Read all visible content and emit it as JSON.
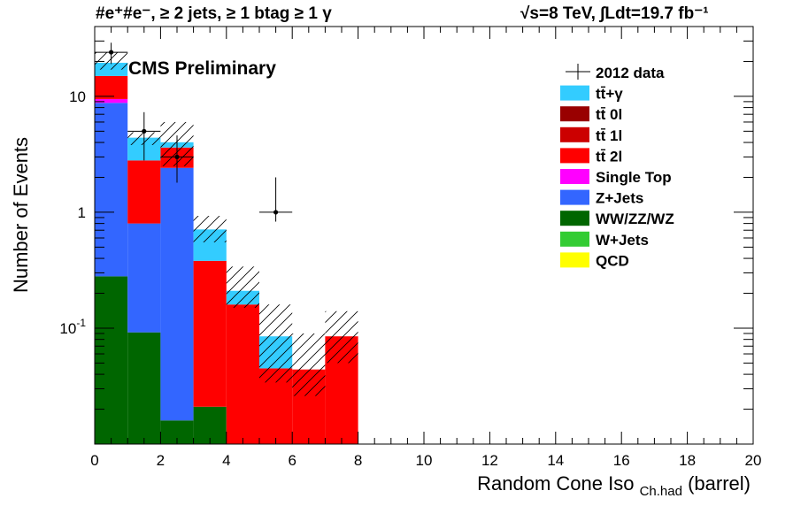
{
  "chart_data": {
    "type": "bar",
    "stacked": true,
    "yscale": "log",
    "header_left": "#e⁺#e⁻, ≥ 2 jets, ≥ 1 btag ≥ 1 γ",
    "header_right": "√s=8 TeV,   ∫Ldt=19.7 fb⁻¹",
    "label": "CMS Preliminary",
    "xlabel": "Random Cone Iso",
    "xlabel_sub": "Ch.had",
    "xlabel_suffix": "(barrel)",
    "ylabel": "Number of Events",
    "xlim": [
      0,
      20
    ],
    "ylim": [
      0.01,
      40
    ],
    "xticks": [
      0,
      2,
      4,
      6,
      8,
      10,
      12,
      14,
      16,
      18,
      20
    ],
    "yticks": [
      {
        "value": 0.1,
        "label": "10",
        "sup": "-1"
      },
      {
        "value": 1,
        "label": "1",
        "sup": ""
      },
      {
        "value": 10,
        "label": "10",
        "sup": ""
      }
    ],
    "bins": [
      [
        0,
        1
      ],
      [
        1,
        2
      ],
      [
        2,
        3
      ],
      [
        3,
        4
      ],
      [
        4,
        5
      ],
      [
        5,
        6
      ],
      [
        6,
        7
      ],
      [
        7,
        8
      ]
    ],
    "series": [
      {
        "name": "QCD",
        "color": "#ffff00",
        "values": [
          0,
          0,
          0,
          0,
          0,
          0,
          0,
          0
        ]
      },
      {
        "name": "W+Jets",
        "color": "#33cc33",
        "values": [
          0,
          0,
          0,
          0,
          0,
          0,
          0,
          0
        ]
      },
      {
        "name": "WW/ZZ/WZ",
        "color": "#006600",
        "values": [
          0.28,
          0.092,
          0.016,
          0.021,
          0,
          0,
          0,
          0
        ]
      },
      {
        "name": "Z+Jets",
        "color": "#3366ff",
        "values": [
          8.5,
          0.708,
          2.4,
          0,
          0,
          0,
          0,
          0
        ]
      },
      {
        "name": "Single Top",
        "color": "#ff00ff",
        "values": [
          0.7,
          0,
          0,
          0,
          0,
          0,
          0,
          0
        ]
      },
      {
        "name": "tt̄ 2l",
        "color": "#ff0000",
        "values": [
          5.5,
          2.0,
          1.2,
          0.36,
          0.16,
          0.045,
          0.044,
          0.085
        ]
      },
      {
        "name": "tt̄ 1l",
        "color": "#cc0000",
        "values": [
          0,
          0,
          0,
          0,
          0,
          0,
          0,
          0
        ]
      },
      {
        "name": "tt̄ 0l",
        "color": "#990000",
        "values": [
          0,
          0,
          0,
          0,
          0,
          0,
          0,
          0
        ]
      },
      {
        "name": "tt̄+γ",
        "color": "#33ccff",
        "values": [
          4.5,
          1.6,
          0.4,
          0.33,
          0.05,
          0.04,
          0,
          0
        ]
      }
    ],
    "uncertainty": {
      "up": [
        24,
        4.9,
        6.0,
        0.93,
        0.34,
        0.16,
        0.09,
        0.14
      ],
      "down": [
        17,
        3.8,
        2.5,
        0.55,
        0.15,
        0.034,
        0.026,
        0.05
      ]
    },
    "data_series": {
      "name": "2012 data",
      "x": [
        0.5,
        1.5,
        2.5,
        5.5
      ],
      "y": [
        24,
        5,
        3,
        1
      ],
      "y_err_low": [
        19,
        2.8,
        1.8,
        0.83
      ],
      "y_err_high": [
        29,
        7.3,
        4.6,
        2.0
      ]
    },
    "legend": [
      {
        "label": "2012 data",
        "type": "marker"
      },
      {
        "label": "tt̄+γ",
        "color": "#33ccff"
      },
      {
        "label": "tt̄ 0l",
        "color": "#990000"
      },
      {
        "label": "tt̄ 1l",
        "color": "#cc0000"
      },
      {
        "label": "tt̄ 2l",
        "color": "#ff0000"
      },
      {
        "label": "Single Top",
        "color": "#ff00ff"
      },
      {
        "label": "Z+Jets",
        "color": "#3366ff"
      },
      {
        "label": "WW/ZZ/WZ",
        "color": "#006600"
      },
      {
        "label": "W+Jets",
        "color": "#33cc33"
      },
      {
        "label": "QCD",
        "color": "#ffff00"
      }
    ],
    "legend_position": "top-right",
    "grid": false
  }
}
